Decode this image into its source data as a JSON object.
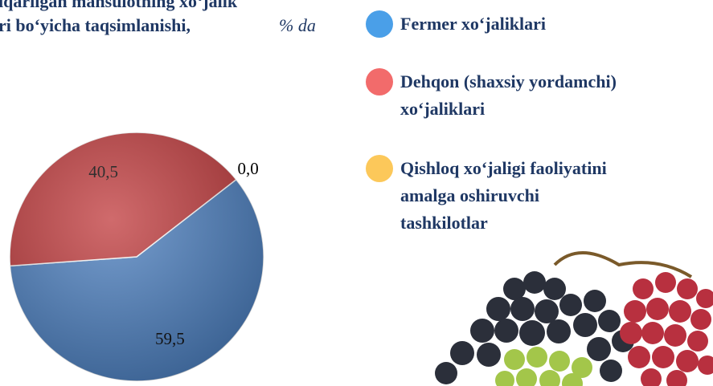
{
  "chart_data": {
    "type": "pie",
    "title_lines": [
      "iqarilgan mahsulotning xo‘jalik",
      "ri bo‘yicha taqsimlanishi,"
    ],
    "title_unit": "% da",
    "categories": [
      "Fermer xo‘jaliklari",
      "Dehqon (shaxsiy yordamchi) xo‘jaliklari",
      "Qishloq xo‘jaligi faoliyatini amalga oshiruvchi tashkilotlar"
    ],
    "legend_lines": [
      [
        "Fermer xo‘jaliklari"
      ],
      [
        "Dehqon (shaxsiy yordamchi)",
        "xo‘jaliklari"
      ],
      [
        "Qishloq xo‘jaligi faoliyatini",
        "amalga oshiruvchi",
        "tashkilotlar"
      ]
    ],
    "values": [
      59.5,
      40.5,
      0.0
    ],
    "value_labels": [
      "59,5",
      "40,5",
      "0,0"
    ],
    "colors": [
      "#4a7ebf",
      "#c0393b",
      "#f5c342"
    ],
    "legend_colors": [
      "#4a9fe8",
      "#f26b6b",
      "#fcc85a"
    ]
  }
}
